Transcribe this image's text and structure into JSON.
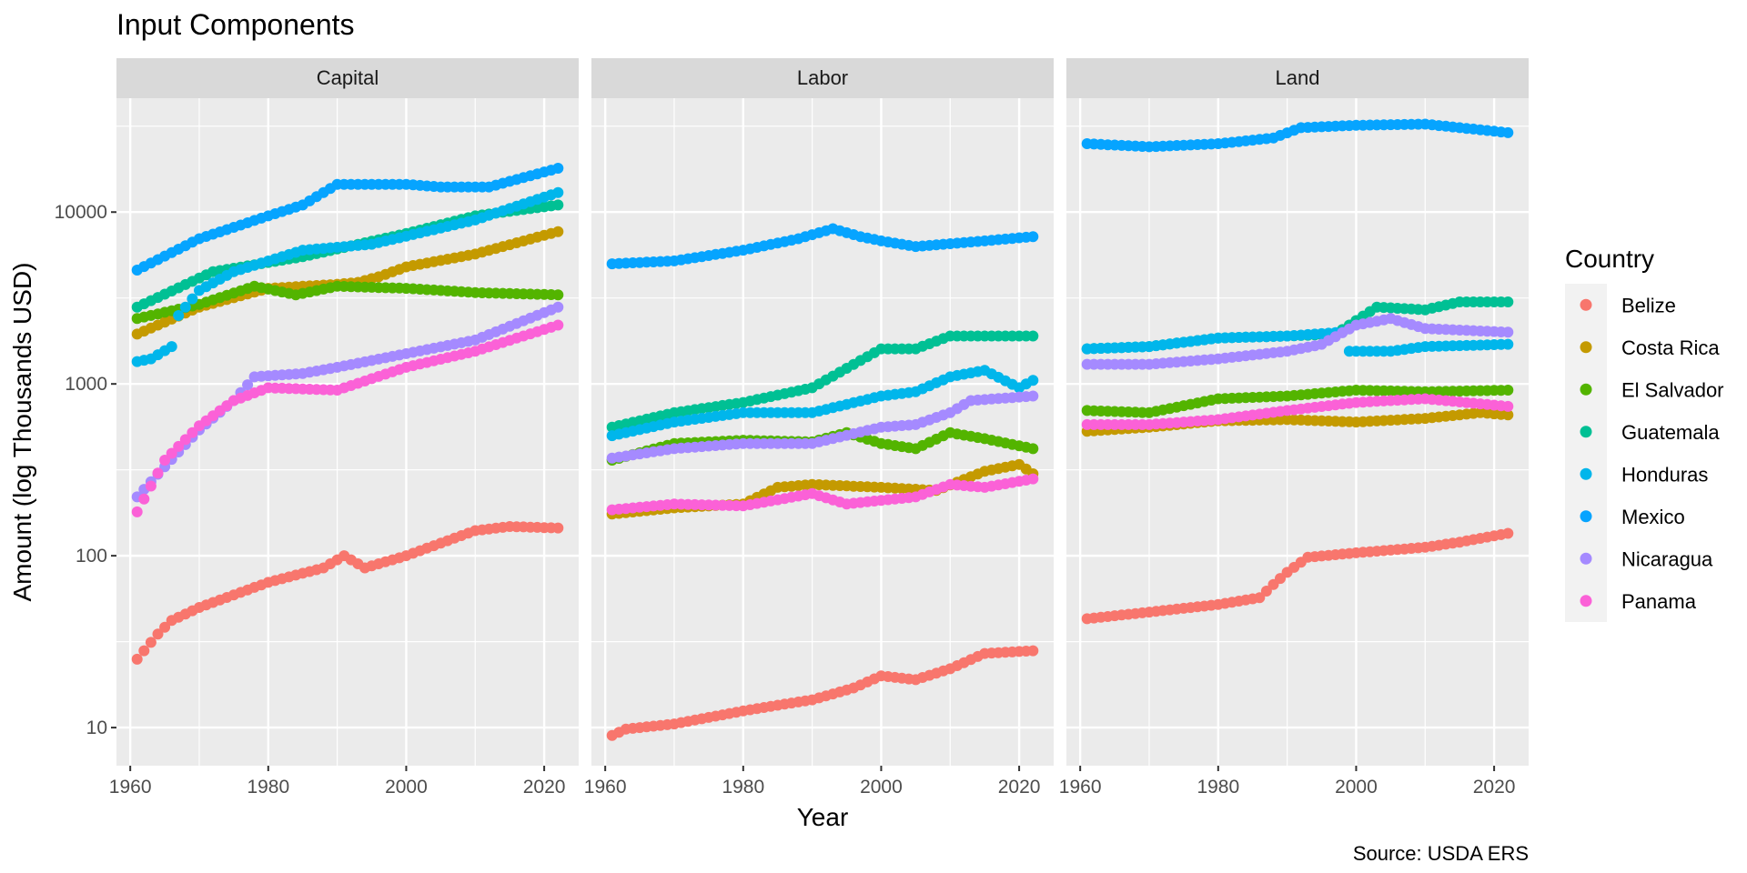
{
  "chart_data": {
    "type": "scatter",
    "title": "Input Components",
    "xlabel": "Year",
    "ylabel": "Amount (log Thousands USD)",
    "caption": "Source: USDA ERS",
    "y_scale": "log10",
    "ylim": [
      6,
      46000
    ],
    "xlim": [
      1958,
      2025
    ],
    "x_ticks": [
      1960,
      1980,
      2000,
      2020
    ],
    "x_tick_labels": [
      "1960",
      "1980",
      "2000",
      "2020"
    ],
    "y_ticks": [
      10,
      100,
      1000,
      10000
    ],
    "y_tick_labels": [
      "10",
      "100",
      "1000",
      "10000"
    ],
    "grid": true,
    "legend": {
      "title": "Country",
      "position": "right"
    },
    "colors": {
      "Belize": "#F8766D",
      "Costa Rica": "#C49A00",
      "El Salvador": "#53B400",
      "Guatemala": "#00C094",
      "Honduras": "#00B6EB",
      "Mexico": "#06A4FF",
      "Nicaragua": "#A58AFF",
      "Panama": "#FB61D7"
    },
    "series_order": [
      "Belize",
      "Costa Rica",
      "El Salvador",
      "Guatemala",
      "Honduras",
      "Mexico",
      "Nicaragua",
      "Panama"
    ],
    "panels": [
      {
        "title": "Capital",
        "series": {
          "Mexico": [
            [
              1961,
              4600
            ],
            [
              1970,
              7000
            ],
            [
              1980,
              9500
            ],
            [
              1985,
              11000
            ],
            [
              1990,
              14500
            ],
            [
              2000,
              14500
            ],
            [
              2005,
              14000
            ],
            [
              2012,
              14000
            ],
            [
              2022,
              18000
            ]
          ],
          "Guatemala": [
            [
              1961,
              2800
            ],
            [
              1972,
              4500
            ],
            [
              1985,
              5500
            ],
            [
              2000,
              7500
            ],
            [
              2010,
              9500
            ],
            [
              2022,
              11000
            ]
          ],
          "Honduras": [
            [
              1961,
              1350
            ],
            [
              1963,
              1400
            ],
            [
              1966,
              1650
            ],
            [
              1967,
              2500
            ],
            [
              1970,
              3500
            ],
            [
              1975,
              4500
            ],
            [
              1985,
              6000
            ],
            [
              1995,
              6500
            ],
            [
              2010,
              9000
            ],
            [
              2022,
              13000
            ]
          ],
          "Costa Rica": [
            [
              1961,
              1950
            ],
            [
              1970,
              2800
            ],
            [
              1980,
              3600
            ],
            [
              1990,
              3800
            ],
            [
              1993,
              3900
            ],
            [
              1996,
              4200
            ],
            [
              2000,
              4800
            ],
            [
              2010,
              5700
            ],
            [
              2022,
              7700
            ]
          ],
          "El Salvador": [
            [
              1961,
              2400
            ],
            [
              1970,
              2900
            ],
            [
              1978,
              3700
            ],
            [
              1984,
              3300
            ],
            [
              1990,
              3700
            ],
            [
              2000,
              3600
            ],
            [
              2010,
              3400
            ],
            [
              2022,
              3300
            ]
          ],
          "Nicaragua": [
            [
              1961,
              220
            ],
            [
              1965,
              330
            ],
            [
              1970,
              540
            ],
            [
              1975,
              800
            ],
            [
              1978,
              1100
            ],
            [
              1985,
              1150
            ],
            [
              1990,
              1250
            ],
            [
              2000,
              1500
            ],
            [
              2010,
              1800
            ],
            [
              2022,
              2800
            ]
          ],
          "Panama": [
            [
              1961,
              180
            ],
            [
              1965,
              360
            ],
            [
              1970,
              570
            ],
            [
              1975,
              800
            ],
            [
              1980,
              950
            ],
            [
              1990,
              920
            ],
            [
              2000,
              1250
            ],
            [
              2010,
              1550
            ],
            [
              2022,
              2200
            ]
          ],
          "Belize": [
            [
              1961,
              25
            ],
            [
              1962,
              28
            ],
            [
              1964,
              35
            ],
            [
              1966,
              42
            ],
            [
              1970,
              50
            ],
            [
              1980,
              70
            ],
            [
              1988,
              85
            ],
            [
              1991,
              100
            ],
            [
              1994,
              85
            ],
            [
              2000,
              100
            ],
            [
              2010,
              140
            ],
            [
              2015,
              148
            ],
            [
              2022,
              145
            ]
          ]
        }
      },
      {
        "title": "Labor",
        "series": {
          "Mexico": [
            [
              1961,
              5000
            ],
            [
              1970,
              5200
            ],
            [
              1980,
              6000
            ],
            [
              1988,
              7000
            ],
            [
              1993,
              8000
            ],
            [
              1997,
              7200
            ],
            [
              2000,
              6800
            ],
            [
              2005,
              6300
            ],
            [
              2015,
              6800
            ],
            [
              2022,
              7200
            ]
          ],
          "Guatemala": [
            [
              1961,
              560
            ],
            [
              1970,
              680
            ],
            [
              1980,
              780
            ],
            [
              1990,
              950
            ],
            [
              2000,
              1600
            ],
            [
              2005,
              1600
            ],
            [
              2010,
              1900
            ],
            [
              2015,
              1900
            ],
            [
              2022,
              1900
            ]
          ],
          "Honduras": [
            [
              1961,
              500
            ],
            [
              1970,
              600
            ],
            [
              1980,
              680
            ],
            [
              1990,
              680
            ],
            [
              2000,
              850
            ],
            [
              2005,
              900
            ],
            [
              2010,
              1100
            ],
            [
              2015,
              1200
            ],
            [
              2020,
              950
            ],
            [
              2022,
              1050
            ]
          ],
          "El Salvador": [
            [
              1961,
              360
            ],
            [
              1970,
              450
            ],
            [
              1980,
              470
            ],
            [
              1990,
              460
            ],
            [
              1995,
              520
            ],
            [
              2000,
              450
            ],
            [
              2005,
              420
            ],
            [
              2010,
              520
            ],
            [
              2015,
              480
            ],
            [
              2022,
              420
            ]
          ],
          "Nicaragua": [
            [
              1961,
              370
            ],
            [
              1970,
              420
            ],
            [
              1980,
              450
            ],
            [
              1990,
              450
            ],
            [
              2000,
              560
            ],
            [
              2005,
              580
            ],
            [
              2010,
              680
            ],
            [
              2013,
              800
            ],
            [
              2022,
              850
            ]
          ],
          "Costa Rica": [
            [
              1961,
              175
            ],
            [
              1970,
              190
            ],
            [
              1980,
              200
            ],
            [
              1985,
              250
            ],
            [
              1990,
              260
            ],
            [
              2000,
              250
            ],
            [
              2008,
              240
            ],
            [
              2015,
              310
            ],
            [
              2020,
              340
            ],
            [
              2022,
              300
            ]
          ],
          "Panama": [
            [
              1961,
              185
            ],
            [
              1970,
              200
            ],
            [
              1980,
              195
            ],
            [
              1990,
              230
            ],
            [
              1995,
              200
            ],
            [
              2000,
              210
            ],
            [
              2005,
              220
            ],
            [
              2010,
              260
            ],
            [
              2015,
              250
            ],
            [
              2022,
              280
            ]
          ],
          "Belize": [
            [
              1961,
              9
            ],
            [
              1963,
              9.8
            ],
            [
              1970,
              10.5
            ],
            [
              1980,
              12.5
            ],
            [
              1985,
              13.5
            ],
            [
              1990,
              14.5
            ],
            [
              1996,
              17
            ],
            [
              2000,
              20
            ],
            [
              2005,
              19
            ],
            [
              2010,
              22
            ],
            [
              2015,
              27
            ],
            [
              2022,
              28
            ]
          ]
        }
      },
      {
        "title": "Land",
        "series": {
          "Mexico": [
            [
              1961,
              25000
            ],
            [
              1970,
              24000
            ],
            [
              1980,
              25000
            ],
            [
              1988,
              27000
            ],
            [
              1992,
              31000
            ],
            [
              2000,
              32000
            ],
            [
              2010,
              32500
            ],
            [
              2015,
              31000
            ],
            [
              2022,
              29000
            ]
          ],
          "Guatemala": [
            [
              1961,
              1600
            ],
            [
              1970,
              1650
            ],
            [
              1980,
              1850
            ],
            [
              1990,
              1900
            ],
            [
              1997,
              1950
            ],
            [
              2003,
              2800
            ],
            [
              2010,
              2700
            ],
            [
              2015,
              3000
            ],
            [
              2022,
              3000
            ]
          ],
          "Honduras": [
            [
              1961,
              1600
            ],
            [
              1970,
              1650
            ],
            [
              1980,
              1850
            ],
            [
              1990,
              1900
            ],
            [
              1998,
              2000
            ],
            [
              1999,
              1550
            ],
            [
              2005,
              1550
            ],
            [
              2010,
              1650
            ],
            [
              2022,
              1700
            ]
          ],
          "Nicaragua": [
            [
              1961,
              1300
            ],
            [
              1970,
              1300
            ],
            [
              1980,
              1400
            ],
            [
              1990,
              1550
            ],
            [
              1995,
              1700
            ],
            [
              2000,
              2200
            ],
            [
              2005,
              2400
            ],
            [
              2010,
              2100
            ],
            [
              2022,
              2000
            ]
          ],
          "El Salvador": [
            [
              1961,
              700
            ],
            [
              1970,
              680
            ],
            [
              1980,
              820
            ],
            [
              1990,
              850
            ],
            [
              2000,
              920
            ],
            [
              2010,
              900
            ],
            [
              2022,
              920
            ]
          ],
          "Panama": [
            [
              1961,
              580
            ],
            [
              1970,
              580
            ],
            [
              1980,
              620
            ],
            [
              1990,
              700
            ],
            [
              2000,
              780
            ],
            [
              2010,
              820
            ],
            [
              2022,
              740
            ]
          ],
          "Costa Rica": [
            [
              1961,
              530
            ],
            [
              1970,
              560
            ],
            [
              1980,
              610
            ],
            [
              1990,
              620
            ],
            [
              2000,
              600
            ],
            [
              2010,
              630
            ],
            [
              2018,
              680
            ],
            [
              2022,
              660
            ]
          ],
          "Belize": [
            [
              1961,
              43
            ],
            [
              1970,
              47
            ],
            [
              1980,
              52
            ],
            [
              1986,
              57
            ],
            [
              1988,
              68
            ],
            [
              1990,
              80
            ],
            [
              1993,
              98
            ],
            [
              2000,
              104
            ],
            [
              2010,
              112
            ],
            [
              2015,
              120
            ],
            [
              2022,
              135
            ]
          ]
        }
      }
    ]
  }
}
